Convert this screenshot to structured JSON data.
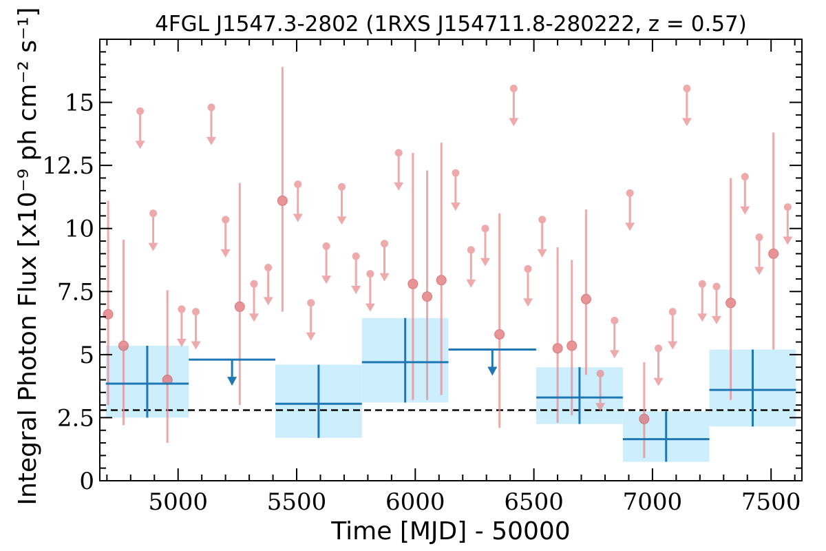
{
  "chart_data": {
    "type": "scatter",
    "title": "4FGL J1547.3-2802 (1RXS J154711.8-280222, z = 0.57)",
    "xlabel": "Time [MJD] - 50000",
    "ylabel": "Integral Photon Flux [x10⁻⁹ ph cm⁻² s⁻¹]",
    "xlim": [
      4670,
      7630
    ],
    "ylim": [
      0,
      17.5
    ],
    "xticks": [
      "5000",
      "5500",
      "6000",
      "6500",
      "7000",
      "7500"
    ],
    "xtick_values": [
      5000,
      5500,
      6000,
      6500,
      7000,
      7500
    ],
    "yticks": [
      "0",
      "2.5",
      "5",
      "7.5",
      "10",
      "12.5",
      "15"
    ],
    "ytick_values": [
      0,
      2.5,
      5,
      7.5,
      10,
      12.5,
      15
    ],
    "mean_flux": 2.8,
    "colors": {
      "fine": "#e8888c",
      "fine_dot": "#e06a6e",
      "coarse": "#1f77b4",
      "band": "#cdeefc",
      "mean": "#000000"
    },
    "fine_points": [
      {
        "x": 4705,
        "y": 6.6,
        "ylo": 3.0,
        "yhi": 11.1
      },
      {
        "x": 4770,
        "y": 5.35,
        "ylo": 2.2,
        "yhi": 9.55
      },
      {
        "x": 4840,
        "y": 14.65,
        "ul": true
      },
      {
        "x": 4895,
        "y": 10.6,
        "ul": true
      },
      {
        "x": 4955,
        "y": 4.0,
        "ylo": 1.5,
        "yhi": 7.55
      },
      {
        "x": 5015,
        "y": 6.8,
        "ul": true
      },
      {
        "x": 5075,
        "y": 6.7,
        "ul": true
      },
      {
        "x": 5140,
        "y": 14.8,
        "ul": true
      },
      {
        "x": 5200,
        "y": 10.35,
        "ul": true
      },
      {
        "x": 5260,
        "y": 6.9,
        "ylo": 3.0,
        "yhi": 11.8
      },
      {
        "x": 5320,
        "y": 7.8,
        "ul": true
      },
      {
        "x": 5380,
        "y": 8.45,
        "ul": true
      },
      {
        "x": 5440,
        "y": 11.1,
        "ylo": 6.7,
        "yhi": 16.4
      },
      {
        "x": 5505,
        "y": 11.75,
        "ul": true
      },
      {
        "x": 5560,
        "y": 7.05,
        "ul": true
      },
      {
        "x": 5625,
        "y": 9.3,
        "ul": true
      },
      {
        "x": 5690,
        "y": 11.65,
        "ul": true
      },
      {
        "x": 5750,
        "y": 8.9,
        "ul": true
      },
      {
        "x": 5810,
        "y": 8.2,
        "ul": true
      },
      {
        "x": 5870,
        "y": 9.4,
        "ul": true
      },
      {
        "x": 5930,
        "y": 13.0,
        "ul": true
      },
      {
        "x": 5990,
        "y": 7.8,
        "ylo": 3.2,
        "yhi": 13.0
      },
      {
        "x": 6050,
        "y": 7.3,
        "ylo": 3.2,
        "yhi": 12.3
      },
      {
        "x": 6110,
        "y": 7.95,
        "ylo": 3.4,
        "yhi": 13.4
      },
      {
        "x": 6170,
        "y": 12.2,
        "ul": true
      },
      {
        "x": 6235,
        "y": 9.15,
        "ul": true
      },
      {
        "x": 6295,
        "y": 10.0,
        "ul": true
      },
      {
        "x": 6355,
        "y": 5.8,
        "ylo": 2.1,
        "yhi": 10.6
      },
      {
        "x": 6415,
        "y": 15.55,
        "ul": true
      },
      {
        "x": 6475,
        "y": 8.4,
        "ul": true
      },
      {
        "x": 6535,
        "y": 10.35,
        "ul": true
      },
      {
        "x": 6600,
        "y": 5.25,
        "ylo": 2.3,
        "yhi": 9.25
      },
      {
        "x": 6660,
        "y": 5.35,
        "ylo": 2.6,
        "yhi": 8.75
      },
      {
        "x": 6720,
        "y": 7.2,
        "ylo": 4.2,
        "yhi": 10.75
      },
      {
        "x": 6780,
        "y": 4.25,
        "ul": true
      },
      {
        "x": 6840,
        "y": 6.35,
        "ul": true
      },
      {
        "x": 6905,
        "y": 11.4,
        "ul": true
      },
      {
        "x": 6965,
        "y": 2.45,
        "ylo": 0.9,
        "yhi": 4.7
      },
      {
        "x": 7025,
        "y": 5.25,
        "ul": true
      },
      {
        "x": 7085,
        "y": 6.7,
        "ul": true
      },
      {
        "x": 7145,
        "y": 15.55,
        "ul": true
      },
      {
        "x": 7210,
        "y": 7.8,
        "ul": true
      },
      {
        "x": 7270,
        "y": 7.7,
        "ul": true
      },
      {
        "x": 7330,
        "y": 7.05,
        "ylo": 3.2,
        "yhi": 12.0
      },
      {
        "x": 7390,
        "y": 12.05,
        "ul": true
      },
      {
        "x": 7450,
        "y": 9.65,
        "ul": true
      },
      {
        "x": 7510,
        "y": 9.0,
        "ylo": 5.2,
        "yhi": 13.8
      },
      {
        "x": 7570,
        "y": 10.85,
        "ul": true
      }
    ],
    "coarse_bins": [
      {
        "x0": 4695,
        "x1": 5045,
        "y": 3.85,
        "ylo": 2.5,
        "yhi": 5.35
      },
      {
        "x0": 5045,
        "x1": 5410,
        "y": 4.8,
        "ul": true
      },
      {
        "x0": 5410,
        "x1": 5775,
        "y": 3.05,
        "ylo": 1.7,
        "yhi": 4.6
      },
      {
        "x0": 5775,
        "x1": 6140,
        "y": 4.7,
        "ylo": 3.1,
        "yhi": 6.45
      },
      {
        "x0": 6140,
        "x1": 6510,
        "y": 5.2,
        "ul": true
      },
      {
        "x0": 6510,
        "x1": 6875,
        "y": 3.3,
        "ylo": 2.25,
        "yhi": 4.5
      },
      {
        "x0": 6875,
        "x1": 7240,
        "y": 1.65,
        "ylo": 0.75,
        "yhi": 2.75
      },
      {
        "x0": 7240,
        "x1": 7605,
        "y": 3.6,
        "ylo": 2.15,
        "yhi": 5.2
      }
    ]
  }
}
